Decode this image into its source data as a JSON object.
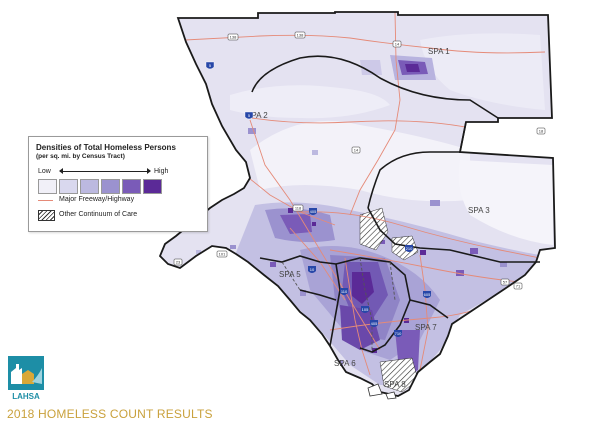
{
  "legend": {
    "title": "Densities of Total Homeless Persons",
    "subtitle": "(per sq. mi. by Census Tract)",
    "low_label": "Low",
    "high_label": "High",
    "ramp_colors": [
      "#f1f0f8",
      "#d9d8ee",
      "#bcb9e0",
      "#9b92cf",
      "#7a5bb8",
      "#5b2a97"
    ],
    "freeway_label": "Major Freeway/Highway",
    "other_coc_label": "Other Continuum of Care"
  },
  "regions": [
    {
      "label": "SPA 1"
    },
    {
      "label": "SPA 2"
    },
    {
      "label": "SPA 3"
    },
    {
      "label": "SPA 5"
    },
    {
      "label": "SPA 6"
    },
    {
      "label": "SPA 7"
    },
    {
      "label": "SPA 8"
    }
  ],
  "highway_markers": [
    {
      "number": "138",
      "shape": "state-route"
    },
    {
      "number": "138",
      "shape": "state-route"
    },
    {
      "number": "14",
      "shape": "state-route"
    },
    {
      "number": "18",
      "shape": "state-route"
    },
    {
      "number": "5",
      "shape": "interstate"
    },
    {
      "number": "5",
      "shape": "interstate"
    },
    {
      "number": "118",
      "shape": "state-route"
    },
    {
      "number": "405",
      "shape": "interstate"
    },
    {
      "number": "210",
      "shape": "interstate"
    },
    {
      "number": "101",
      "shape": "us-route"
    },
    {
      "number": "10",
      "shape": "interstate"
    },
    {
      "number": "110",
      "shape": "interstate"
    },
    {
      "number": "605",
      "shape": "interstate"
    },
    {
      "number": "405",
      "shape": "interstate"
    },
    {
      "number": "710",
      "shape": "interstate"
    },
    {
      "number": "105",
      "shape": "interstate"
    },
    {
      "number": "57",
      "shape": "state-route"
    },
    {
      "number": "71",
      "shape": "state-route"
    },
    {
      "number": "14",
      "shape": "state-route"
    },
    {
      "number": "23",
      "shape": "state-route"
    }
  ],
  "colors": {
    "county_fill": "#e4e2f1",
    "county_outline": "#1a1a1a",
    "spa_outline": "#1a1a1a",
    "freeway": "#e58a78",
    "footer_text": "#c9a13c",
    "logo_teal": "#1d8ea6",
    "logo_gold": "#d8a838"
  },
  "footer": {
    "logo_text": "LAHSA",
    "title": "2018 HOMELESS COUNT RESULTS"
  }
}
